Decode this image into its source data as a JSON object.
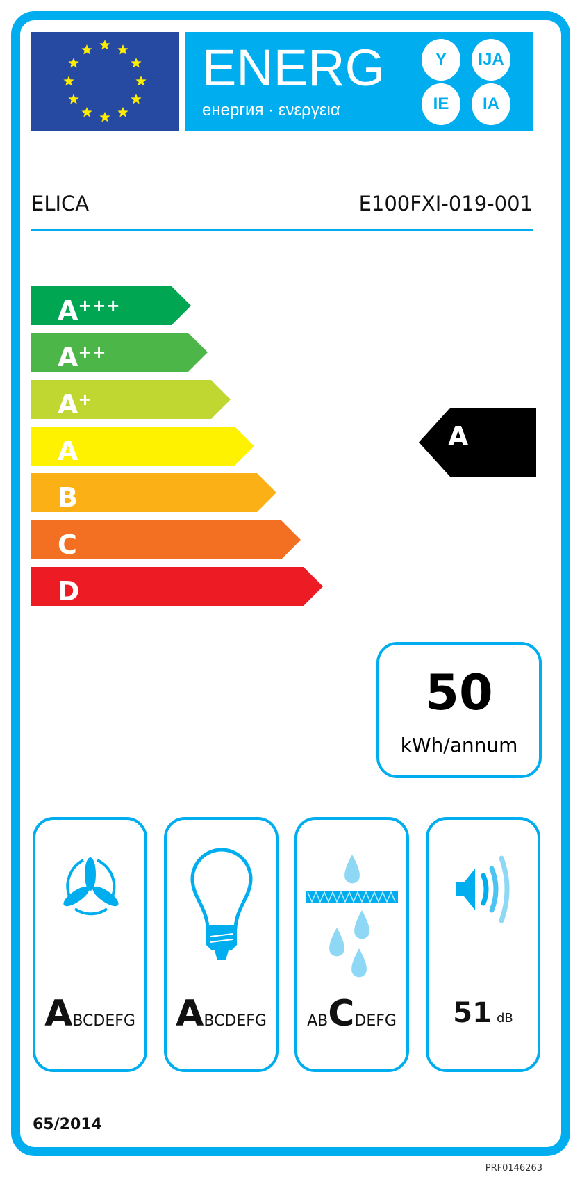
{
  "header": {
    "energy_word": "ENERG",
    "energy_subtitle": "енергия · ενεργεια",
    "suffixes": [
      "Y",
      "IJA",
      "IE",
      "IA"
    ],
    "supplier": "ELICA",
    "model": "E100FXI-019-001"
  },
  "scale": {
    "classes": [
      {
        "letter": "A",
        "plus": "+++",
        "color": "#00a651"
      },
      {
        "letter": "A",
        "plus": "++",
        "color": "#4cb748"
      },
      {
        "letter": "A",
        "plus": "+",
        "color": "#bfd730"
      },
      {
        "letter": "A",
        "plus": "",
        "color": "#fff200"
      },
      {
        "letter": "B",
        "plus": "",
        "color": "#fbb116"
      },
      {
        "letter": "C",
        "plus": "",
        "color": "#f36f21"
      },
      {
        "letter": "D",
        "plus": "",
        "color": "#ed1c24"
      }
    ]
  },
  "rating": {
    "class": "A",
    "color": "#000000"
  },
  "consumption": {
    "value": "50",
    "unit": "kWh/annum"
  },
  "categories": [
    {
      "icon": "fan-icon",
      "pre": "",
      "highlight": "A",
      "post": "BCDEFG"
    },
    {
      "icon": "light-bulb-icon",
      "pre": "",
      "highlight": "A",
      "post": "BCDEFG"
    },
    {
      "icon": "grease-filter-icon",
      "pre": "AB",
      "highlight": "C",
      "post": "DEFG"
    },
    {
      "icon": "speaker-icon",
      "value": "51",
      "unit": "dB"
    }
  ],
  "regulation": "65/2014",
  "code": "PRF0146263",
  "colors": {
    "frame": "#00aeef",
    "flag": "#2649a2",
    "star": "#ffed00"
  }
}
